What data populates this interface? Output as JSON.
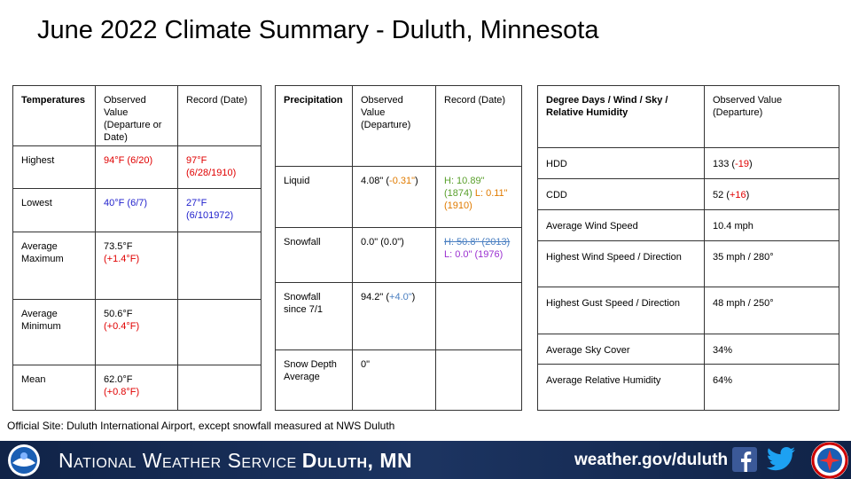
{
  "title": "June 2022 Climate Summary - Duluth, Minnesota",
  "tables": [
    {
      "rows": [
        [
          [
            {
              "text": "Temperatures",
              "bold": true
            }
          ],
          [
            {
              "text": "Observed Value (Departure or Date)"
            }
          ],
          [
            {
              "text": "Record (Date)"
            }
          ]
        ],
        [
          [
            {
              "text": "Highest"
            }
          ],
          [
            {
              "text": "94°F (6/20)",
              "color": "#e00000"
            }
          ],
          [
            {
              "text": "97°F (6/28/1910)",
              "color": "#e00000"
            }
          ]
        ],
        [
          [
            {
              "text": "Lowest"
            }
          ],
          [
            {
              "text": "40°F (6/7)",
              "color": "#1f1fcc"
            }
          ],
          [
            {
              "text": "27°F (6/101972)",
              "color": "#1f1fcc"
            }
          ]
        ],
        [
          [
            {
              "text": "Average Maximum"
            }
          ],
          [
            {
              "text": "73.5°F "
            },
            {
              "text": "(+1.4°F)",
              "color": "#e00000"
            }
          ],
          []
        ],
        [
          [
            {
              "text": "Average Minimum"
            }
          ],
          [
            {
              "text": "50.6°F "
            },
            {
              "text": "(+0.4°F)",
              "color": "#e00000"
            }
          ],
          []
        ],
        [
          [
            {
              "text": "Mean"
            }
          ],
          [
            {
              "text": "62.0°F "
            },
            {
              "text": "(+0.8°F)",
              "color": "#e00000"
            }
          ],
          []
        ]
      ]
    },
    {
      "rows": [
        [
          [
            {
              "text": "Precipitation",
              "bold": true
            }
          ],
          [
            {
              "text": "Observed Value (Departure)"
            }
          ],
          [
            {
              "text": "Record (Date)"
            }
          ]
        ],
        [
          [
            {
              "text": "Liquid"
            }
          ],
          [
            {
              "text": "4.08\" ("
            },
            {
              "text": "-0.31\"",
              "color": "#e07b00"
            },
            {
              "text": ")"
            }
          ],
          [
            {
              "text": "H: 10.89\" (1874)",
              "color": "#5aa02c"
            },
            {
              "text": " L: 0.11\" (1910)",
              "color": "#e07b00"
            }
          ]
        ],
        [
          [
            {
              "text": "Snowfall"
            }
          ],
          [
            {
              "text": "0.0\" (0.0\")"
            }
          ],
          [
            {
              "text": "H: 50.8\" (2013)",
              "color": "#4a7fc1",
              "strike": true
            },
            {
              "text": " L: 0.0\" (1976)",
              "color": "#9b30d0"
            }
          ]
        ],
        [
          [
            {
              "text": "Snowfall since 7/1"
            }
          ],
          [
            {
              "text": "94.2\" ("
            },
            {
              "text": "+4.0\"",
              "color": "#4a7fc1"
            },
            {
              "text": ")"
            }
          ],
          []
        ],
        [
          [
            {
              "text": "Snow Depth Average"
            }
          ],
          [
            {
              "text": "0\""
            }
          ],
          []
        ]
      ]
    },
    {
      "rows": [
        [
          [
            {
              "text": "Degree Days / Wind / Sky / Relative Humidity",
              "bold": true
            }
          ],
          [
            {
              "text": "Observed Value (Departure)"
            }
          ]
        ],
        [
          [
            {
              "text": "HDD"
            }
          ],
          [
            {
              "text": "133 ("
            },
            {
              "text": "-19",
              "color": "#e00000"
            },
            {
              "text": ")"
            }
          ]
        ],
        [
          [
            {
              "text": "CDD"
            }
          ],
          [
            {
              "text": "52 ("
            },
            {
              "text": "+16",
              "color": "#e00000"
            },
            {
              "text": ")"
            }
          ]
        ],
        [
          [
            {
              "text": "Average Wind Speed"
            }
          ],
          [
            {
              "text": "10.4 mph"
            }
          ]
        ],
        [
          [
            {
              "text": "Highest Wind Speed / Direction"
            }
          ],
          [
            {
              "text": "35 mph / 280°"
            }
          ]
        ],
        [
          [
            {
              "text": "Highest Gust Speed / Direction"
            }
          ],
          [
            {
              "text": "48 mph / 250°"
            }
          ]
        ],
        [
          [
            {
              "text": "Average Sky Cover"
            }
          ],
          [
            {
              "text": "34%"
            }
          ]
        ],
        [
          [
            {
              "text": "Average Relative Humidity"
            }
          ],
          [
            {
              "text": "64%"
            }
          ]
        ]
      ]
    }
  ],
  "note": "Official Site: Duluth International Airport, except snowfall measured at NWS Duluth",
  "footer": {
    "org": "National Weather Service",
    "office": "Duluth, MN",
    "url": "weather.gov/duluth"
  }
}
